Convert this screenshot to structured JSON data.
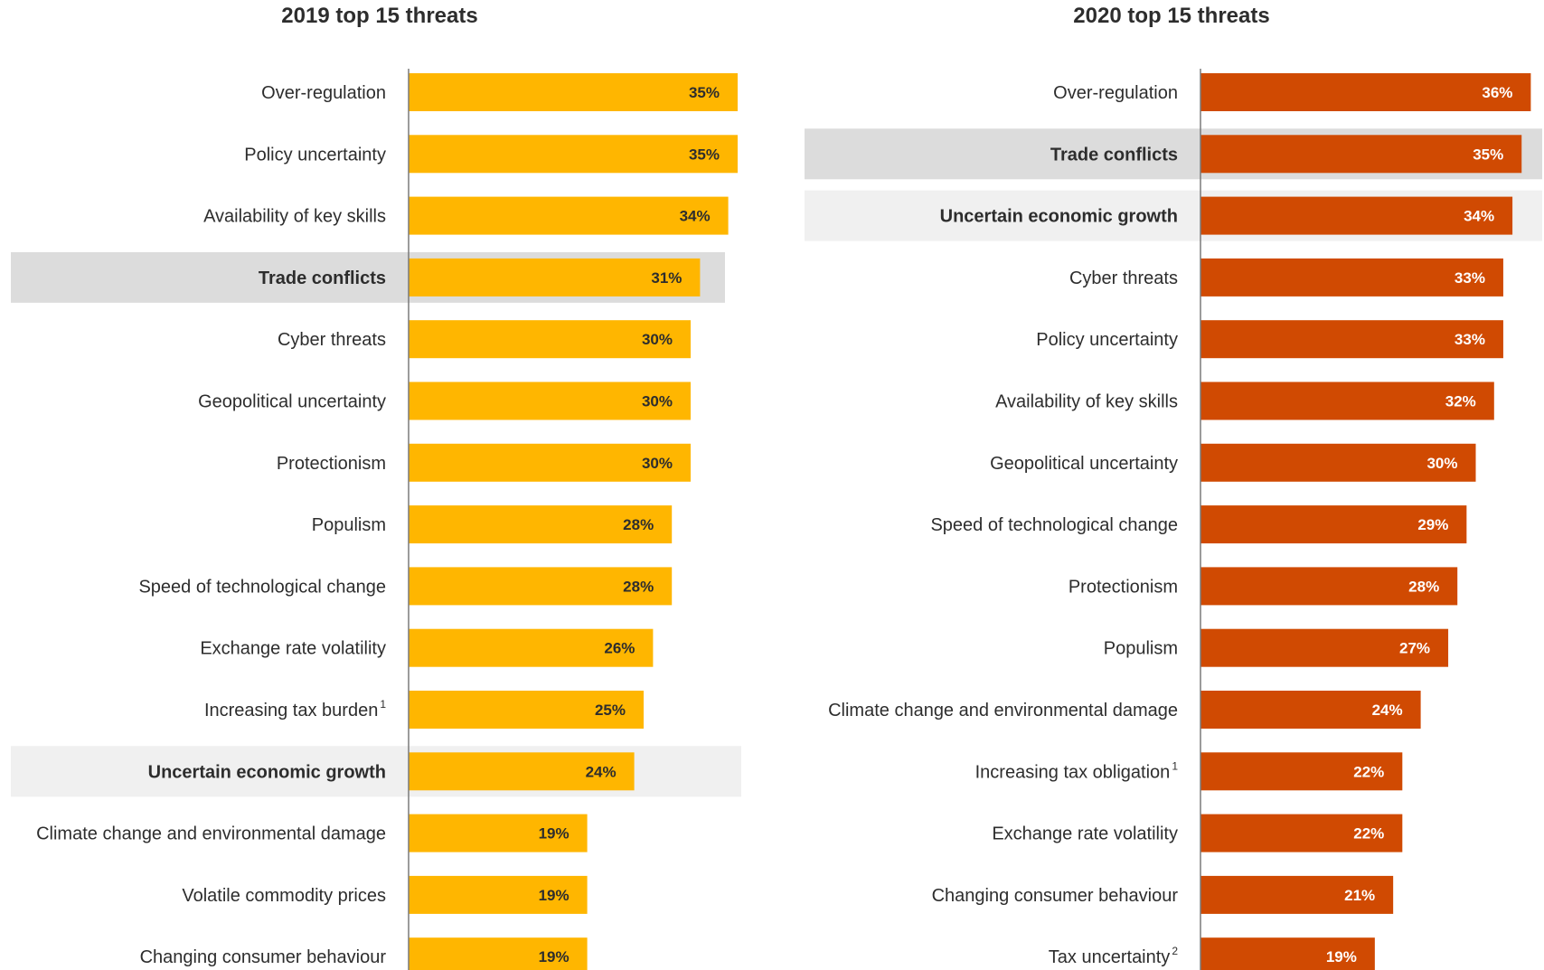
{
  "chart_data": [
    {
      "type": "bar",
      "orientation": "horizontal",
      "title": "2019 top 15 threats",
      "categories": [
        "Over-regulation",
        "Policy uncertainty",
        "Availability of key skills",
        "Trade conflicts",
        "Cyber threats",
        "Geopolitical uncertainty",
        "Protectionism",
        "Populism",
        "Speed of technological change",
        "Exchange rate volatility",
        "Increasing tax burden",
        "Uncertain economic growth",
        "Climate change and environmental damage",
        "Volatile commodity prices",
        "Changing consumer behaviour"
      ],
      "footnotes": [
        "",
        "",
        "",
        "",
        "",
        "",
        "",
        "",
        "",
        "",
        "1",
        "",
        "",
        "",
        ""
      ],
      "values": [
        35,
        35,
        34,
        31,
        30,
        30,
        30,
        28,
        28,
        26,
        25,
        24,
        19,
        19,
        19
      ],
      "data_labels": [
        "35%",
        "35%",
        "34%",
        "31%",
        "30%",
        "30%",
        "30%",
        "28%",
        "28%",
        "26%",
        "25%",
        "24%",
        "19%",
        "19%",
        "19%"
      ],
      "highlight": [
        "",
        "",
        "",
        "dark",
        "",
        "",
        "",
        "",
        "",
        "",
        "",
        "light",
        "",
        "",
        ""
      ],
      "bold": [
        false,
        false,
        false,
        true,
        false,
        false,
        false,
        false,
        false,
        false,
        false,
        true,
        false,
        false,
        false
      ],
      "bar_color": "#FFB600",
      "label_color": "#2d2d2d",
      "highlight_dark": "#dcdcdc",
      "highlight_light": "#f0f0f0",
      "xlim": [
        0,
        37
      ],
      "grid": false,
      "legend": "none"
    },
    {
      "type": "bar",
      "orientation": "horizontal",
      "title": "2020 top 15 threats",
      "categories": [
        "Over-regulation",
        "Trade conflicts",
        "Uncertain economic growth",
        "Cyber threats",
        "Policy uncertainty",
        "Availability of key skills",
        "Geopolitical uncertainty",
        "Speed of technological change",
        "Protectionism",
        "Populism",
        "Climate change and environmental damage",
        "Increasing tax obligation",
        "Exchange rate volatility",
        "Changing consumer behaviour",
        "Tax uncertainty"
      ],
      "footnotes": [
        "",
        "",
        "",
        "",
        "",
        "",
        "",
        "",
        "",
        "",
        "",
        "1",
        "",
        "",
        "2"
      ],
      "values": [
        36,
        35,
        34,
        33,
        33,
        32,
        30,
        29,
        28,
        27,
        24,
        22,
        22,
        21,
        19
      ],
      "data_labels": [
        "36%",
        "35%",
        "34%",
        "33%",
        "33%",
        "32%",
        "30%",
        "29%",
        "28%",
        "27%",
        "24%",
        "22%",
        "22%",
        "21%",
        "19%"
      ],
      "highlight": [
        "",
        "dark",
        "light",
        "",
        "",
        "",
        "",
        "",
        "",
        "",
        "",
        "",
        "",
        "",
        ""
      ],
      "bold": [
        false,
        true,
        true,
        false,
        false,
        false,
        false,
        false,
        false,
        false,
        false,
        false,
        false,
        false,
        false
      ],
      "bar_color": "#D04A02",
      "label_color": "#ffffff",
      "highlight_dark": "#dcdcdc",
      "highlight_light": "#f0f0f0",
      "xlim": [
        0,
        37
      ],
      "grid": false,
      "legend": "none"
    }
  ]
}
